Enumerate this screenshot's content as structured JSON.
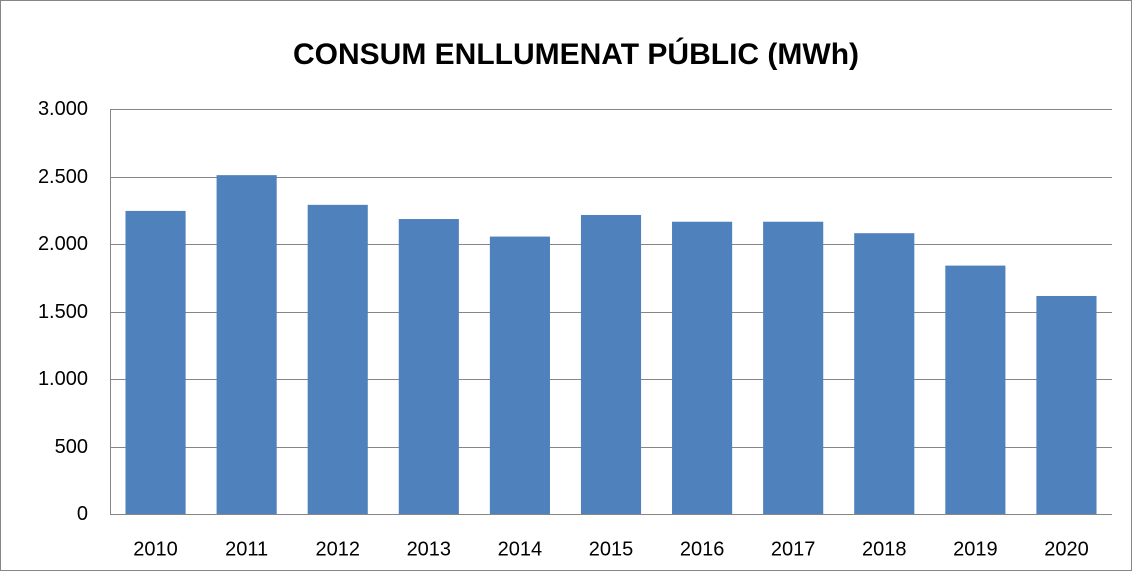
{
  "chart_data": {
    "type": "bar",
    "title": "CONSUM ENLLUMENAT PÚBLIC (MWh)",
    "categories": [
      "2010",
      "2011",
      "2012",
      "2013",
      "2014",
      "2015",
      "2016",
      "2017",
      "2018",
      "2019",
      "2020"
    ],
    "values": [
      2245,
      2510,
      2290,
      2185,
      2055,
      2215,
      2165,
      2165,
      2080,
      1840,
      1615
    ],
    "color": "#4f81bd",
    "ylim": [
      0,
      3000
    ],
    "yticks": [
      0,
      500,
      {
        "value": 1000,
        "label": "1.000"
      },
      {
        "value": 1500,
        "label": "1.500"
      },
      {
        "value": 2000,
        "label": "2.000"
      },
      {
        "value": 2500,
        "label": "2.500"
      },
      {
        "value": 3000,
        "label": "3.000"
      }
    ],
    "grid": true
  }
}
